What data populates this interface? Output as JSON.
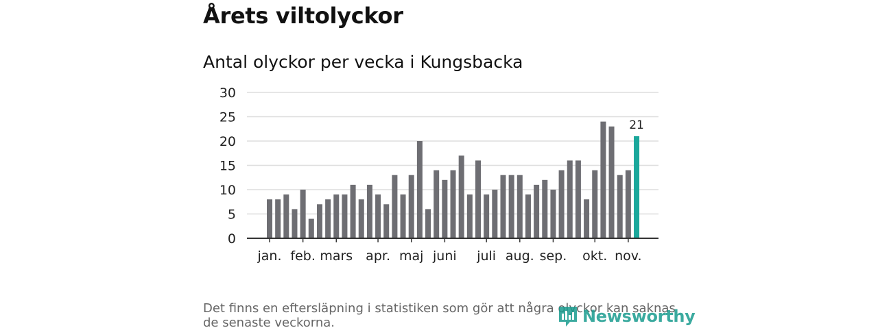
{
  "header": {
    "title": "Årets viltolyckor",
    "subtitle": "Antal olyckor per vecka i Kungsbacka"
  },
  "colors": {
    "bar": "#6e6e73",
    "highlight": "#1aa79b",
    "grid": "#dddddd",
    "axis": "#333333",
    "text": "#222222"
  },
  "chart_data": {
    "type": "bar",
    "title": "Antal olyckor per vecka i Kungsbacka",
    "xlabel": "",
    "ylabel": "",
    "ylim": [
      0,
      30
    ],
    "yticks": [
      0,
      5,
      10,
      15,
      20,
      25,
      30
    ],
    "grid": true,
    "values": [
      8,
      8,
      9,
      6,
      10,
      4,
      7,
      8,
      9,
      9,
      11,
      8,
      11,
      9,
      7,
      13,
      9,
      13,
      20,
      6,
      14,
      12,
      14,
      17,
      9,
      16,
      9,
      10,
      13,
      13,
      13,
      9,
      11,
      12,
      10,
      14,
      16,
      16,
      8,
      14,
      24,
      23,
      13,
      14,
      21
    ],
    "highlight_index": 44,
    "highlight_label": "21",
    "month_labels": [
      {
        "label": "jan.",
        "week_index": 0
      },
      {
        "label": "feb.",
        "week_index": 4
      },
      {
        "label": "mars",
        "week_index": 8
      },
      {
        "label": "apr.",
        "week_index": 13
      },
      {
        "label": "maj",
        "week_index": 17
      },
      {
        "label": "juni",
        "week_index": 21
      },
      {
        "label": "juli",
        "week_index": 26
      },
      {
        "label": "aug.",
        "week_index": 30
      },
      {
        "label": "sep.",
        "week_index": 34
      },
      {
        "label": "okt.",
        "week_index": 39
      },
      {
        "label": "nov.",
        "week_index": 43
      }
    ]
  },
  "footer": {
    "note": "Det finns en eftersläpning i statistiken som gör att några olyckor kan saknas de senaste veckorna.",
    "logo_text": "Newsworthy"
  }
}
